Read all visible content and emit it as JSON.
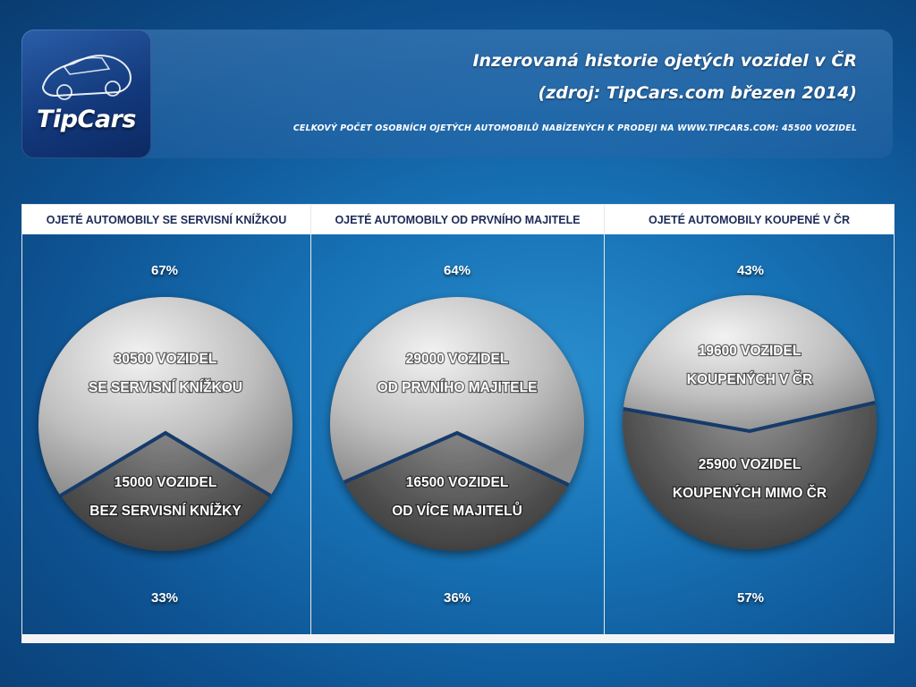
{
  "header": {
    "logo_text": "TipCars",
    "title_line1": "Inzerovaná historie ojetých vozidel v ČR",
    "title_line2": "(zdroj: TipCars.com březen 2014)",
    "subtitle": "CELKOVÝ POČET OSOBNÍCH OJETÝCH AUTOMOBILŮ NABÍZENÝCH K PRODEJI NA WWW.TIPCARS.COM: 45500 VOZIDEL"
  },
  "colors": {
    "top_segment": "#c9c9c9",
    "bottom_segment": "#555555",
    "header_text": "#1c2b57"
  },
  "chart_data": [
    {
      "type": "pie",
      "title": "OJETÉ AUTOMOBILY SE SERVISNÍ KNÍŽKOU",
      "slices": [
        {
          "line1": "30500 VOZIDEL",
          "line2": "SE SERVISNÍ KNÍŽKOU",
          "value": 30500,
          "percent_label": "67%"
        },
        {
          "line1": "15000 VOZIDEL",
          "line2": "BEZ SERVISNÍ KNÍŽKY",
          "value": 15000,
          "percent_label": "33%"
        }
      ]
    },
    {
      "type": "pie",
      "title": "OJETÉ AUTOMOBILY OD PRVNÍHO MAJITELE",
      "slices": [
        {
          "line1": "29000 VOZIDEL",
          "line2": "OD PRVNÍHO MAJITELE",
          "value": 29000,
          "percent_label": "64%"
        },
        {
          "line1": "16500 VOZIDEL",
          "line2": "OD VÍCE MAJITELŮ",
          "value": 16500,
          "percent_label": "36%"
        }
      ]
    },
    {
      "type": "pie",
      "title": "OJETÉ AUTOMOBILY KOUPENÉ V ČR",
      "slices": [
        {
          "line1": "19600 VOZIDEL",
          "line2": "KOUPENÝCH V ČR",
          "value": 19600,
          "percent_label": "43%"
        },
        {
          "line1": "25900 VOZIDEL",
          "line2": "KOUPENÝCH MIMO ČR",
          "value": 25900,
          "percent_label": "57%"
        }
      ]
    }
  ]
}
